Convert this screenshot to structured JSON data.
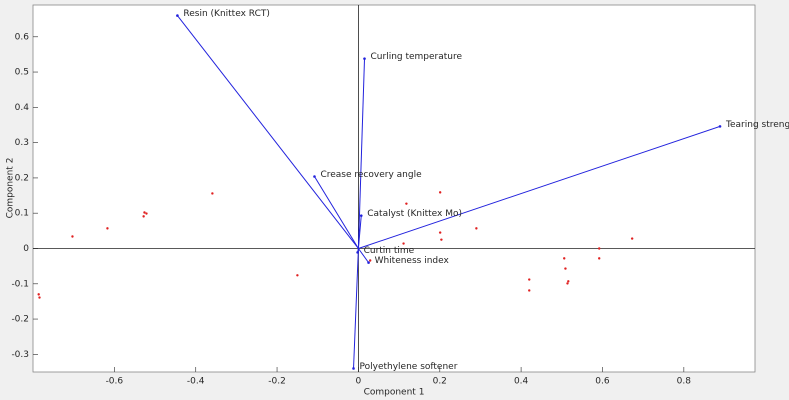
{
  "chart_data": {
    "type": "biplot",
    "xlabel": "Component 1",
    "ylabel": "Component 2",
    "xlim": [
      -0.8,
      0.975
    ],
    "ylim": [
      -0.35,
      0.69
    ],
    "xticks": [
      -0.6,
      -0.4,
      -0.2,
      0,
      0.2,
      0.4,
      0.6,
      0.8
    ],
    "yticks": [
      -0.3,
      -0.2,
      -0.1,
      0,
      0.1,
      0.2,
      0.3,
      0.4,
      0.5,
      0.6
    ],
    "grid": false,
    "vectors": {
      "color": "#2222dd",
      "names": [
        "Resin (Knittex RCT)",
        "Curling temperature",
        "Tearing strength",
        "Crease recovery angle",
        "Catalyst (Knittex  Mo)",
        "Curtin time",
        "Whiteness index",
        "Polyethylene softener"
      ],
      "x": [
        -0.445,
        0.015,
        0.889,
        -0.108,
        0.007,
        -0.002,
        0.025,
        -0.012
      ],
      "y": [
        0.66,
        0.538,
        0.346,
        0.204,
        0.093,
        -0.011,
        -0.04,
        -0.34
      ]
    },
    "points": {
      "color": "#e02020",
      "x": [
        -0.786,
        -0.784,
        -0.703,
        -0.617,
        -0.526,
        -0.521,
        -0.528,
        -0.359,
        -0.15,
        0.029,
        0.111,
        0.118,
        0.201,
        0.201,
        0.204,
        0.29,
        0.42,
        0.42,
        0.506,
        0.509,
        0.514,
        0.516,
        0.592,
        0.592,
        0.673
      ],
      "y": [
        -0.13,
        -0.139,
        0.034,
        0.057,
        0.102,
        0.099,
        0.091,
        0.156,
        -0.076,
        -0.034,
        0.014,
        0.127,
        0.159,
        0.045,
        0.025,
        0.057,
        -0.088,
        -0.119,
        -0.028,
        -0.057,
        -0.099,
        -0.093,
        0,
        -0.028,
        0.028
      ]
    }
  }
}
